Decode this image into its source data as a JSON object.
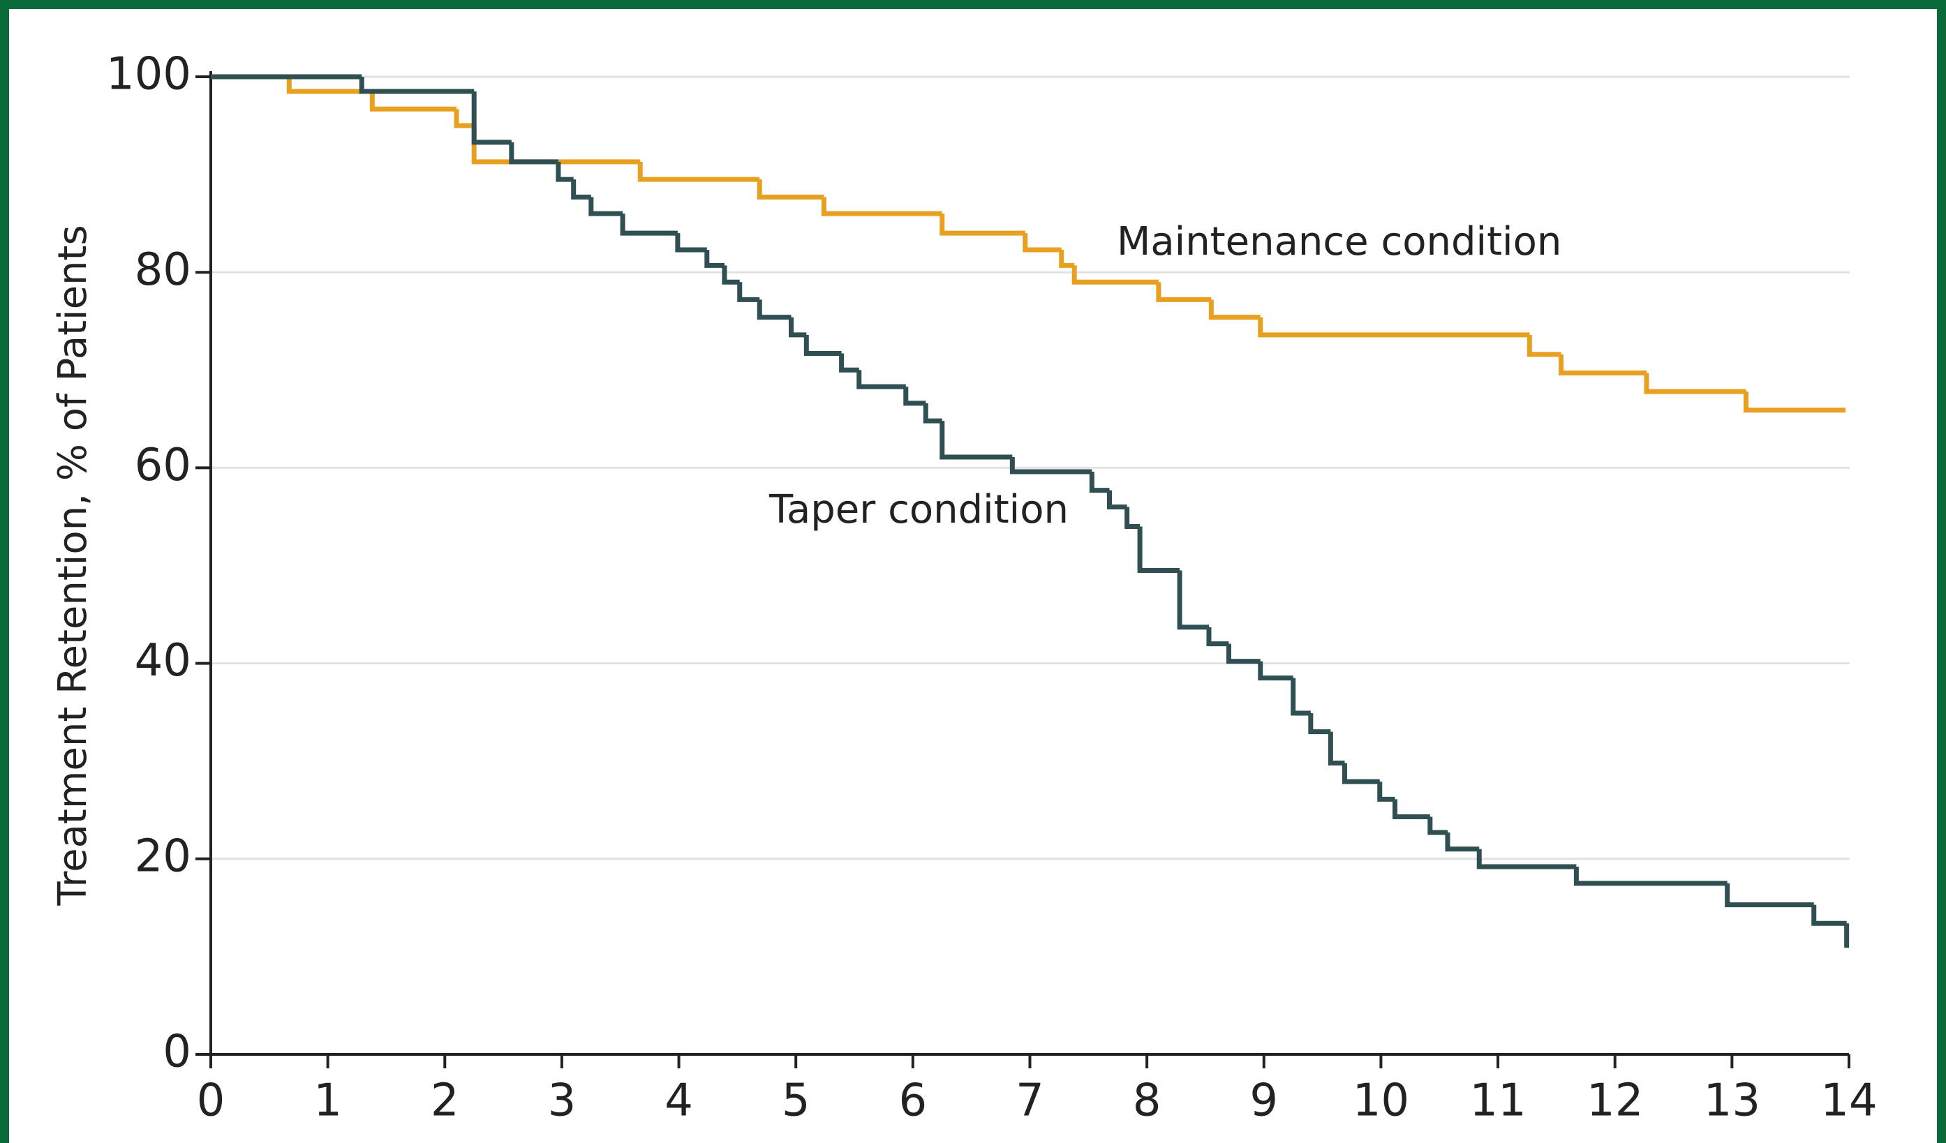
{
  "chart_data": {
    "type": "step",
    "ylabel": "Treatment Retention, % of Patients",
    "xlim": [
      0,
      14
    ],
    "xticks": [
      0,
      1,
      2,
      3,
      4,
      5,
      6,
      7,
      8,
      9,
      10,
      11,
      12,
      13,
      14
    ],
    "ylim": [
      0,
      100
    ],
    "yticks": [
      0,
      20,
      40,
      60,
      80,
      100
    ],
    "grid": true,
    "series": [
      {
        "name": "Maintenance condition",
        "color": "#e8a020",
        "x": [
          0,
          0.67,
          1.38,
          2.1,
          2.25,
          3.67,
          4.69,
          5.24,
          6.25,
          6.96,
          7.27,
          7.38,
          8.1,
          8.55,
          8.97,
          11.27,
          11.54,
          12.27,
          13.12,
          13.97
        ],
        "values": [
          100,
          98.5,
          96.7,
          95,
          91.3,
          89.5,
          87.7,
          86,
          84,
          82.3,
          80.7,
          79,
          77.2,
          75.4,
          73.6,
          71.6,
          69.7,
          67.8,
          65.9,
          65.9
        ]
      },
      {
        "name": "Taper condition",
        "color": "#2f4f52",
        "x": [
          0,
          1.29,
          2.25,
          2.57,
          2.97,
          3.1,
          3.25,
          3.52,
          3.99,
          4.24,
          4.39,
          4.52,
          4.69,
          4.96,
          5.09,
          5.39,
          5.54,
          5.94,
          6.11,
          6.25,
          6.85,
          7.53,
          7.68,
          7.83,
          7.94,
          8.28,
          8.53,
          8.7,
          8.97,
          9.25,
          9.4,
          9.57,
          9.69,
          9.99,
          10.12,
          10.42,
          10.57,
          10.84,
          11.67,
          12.96,
          13.7,
          13.98
        ],
        "values": [
          100,
          98.5,
          93.3,
          91.3,
          89.5,
          87.7,
          86,
          84,
          82.3,
          80.7,
          79,
          77.2,
          75.4,
          73.6,
          71.7,
          70,
          68.3,
          66.6,
          64.8,
          61.1,
          59.6,
          57.7,
          56,
          54,
          49.5,
          43.7,
          42,
          40.2,
          38.5,
          34.9,
          33,
          29.8,
          27.9,
          26.1,
          24.3,
          22.7,
          21,
          19.2,
          17.5,
          15.3,
          13.4,
          10.9
        ]
      }
    ]
  }
}
